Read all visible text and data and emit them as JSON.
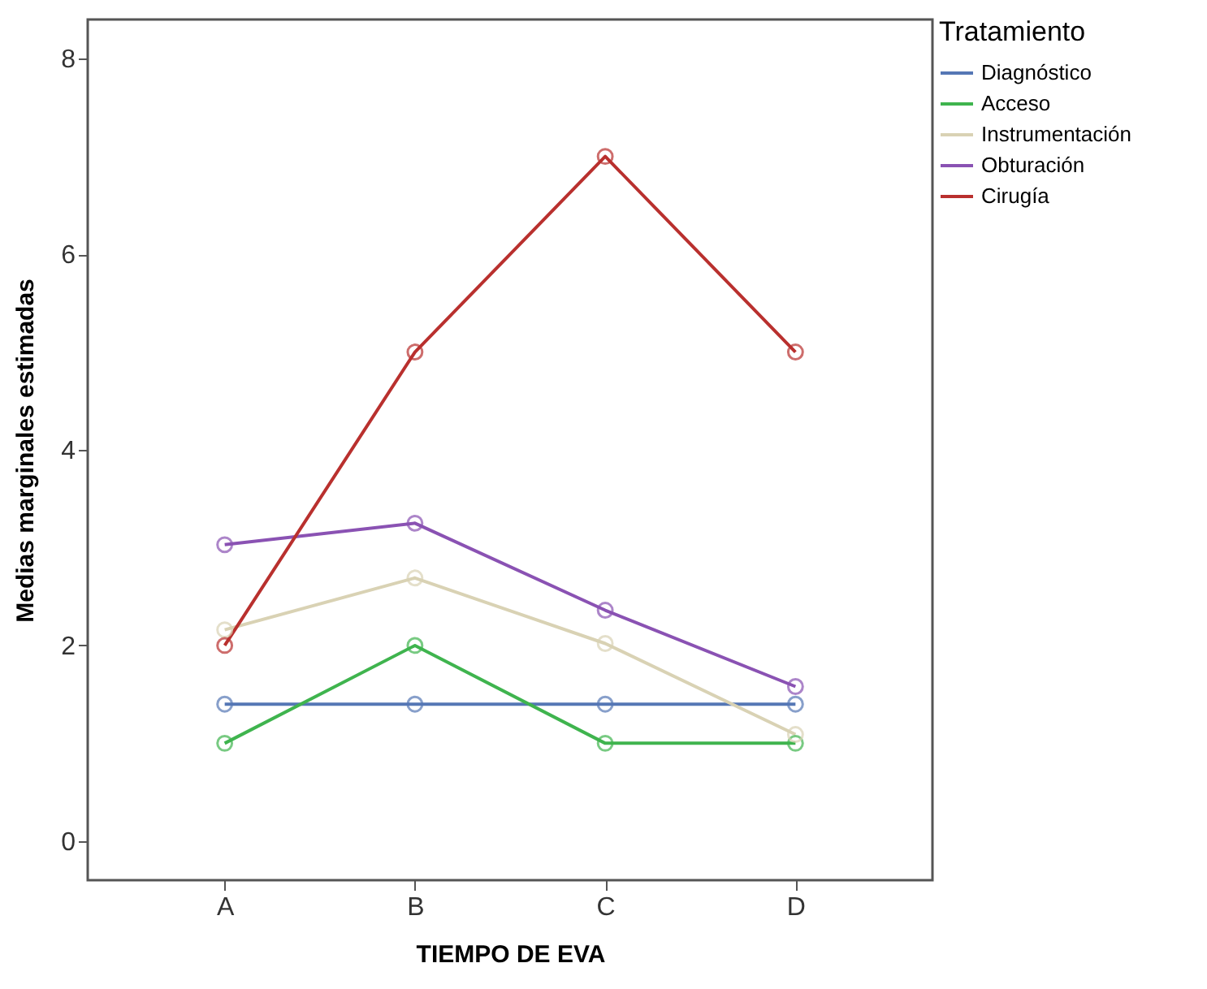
{
  "chart_data": {
    "type": "line",
    "xlabel": "TIEMPO DE EVA",
    "ylabel": "Medias marginales estimadas",
    "legend_title": "Tratamiento",
    "categories": [
      "A",
      "B",
      "C",
      "D"
    ],
    "ylim": [
      -0.4,
      8.4
    ],
    "yticks": [
      0,
      2,
      4,
      6,
      8
    ],
    "grid": false,
    "legend": "top right",
    "marker": "circle",
    "line_style": "solid",
    "series": [
      {
        "name": "Diagnóstico",
        "color": "#5577b5",
        "values": [
          1.4,
          1.4,
          1.4,
          1.4
        ]
      },
      {
        "name": "Acceso",
        "color": "#3fb44e",
        "values": [
          1,
          2,
          1,
          1
        ]
      },
      {
        "name": "Instrumentación",
        "color": "#d9d2b4",
        "values": [
          2.16,
          2.69,
          2.02,
          1.09
        ]
      },
      {
        "name": "Obturación",
        "color": "#8a52b3",
        "values": [
          3.03,
          3.25,
          2.36,
          1.58
        ]
      },
      {
        "name": "Cirugía",
        "color": "#b9302e",
        "values": [
          2,
          5,
          7,
          5
        ]
      }
    ]
  }
}
